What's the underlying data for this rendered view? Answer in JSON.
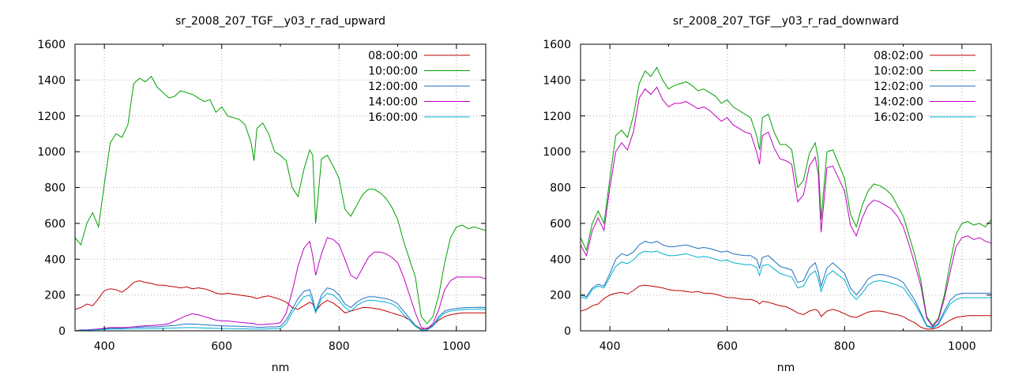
{
  "chart_data": [
    {
      "type": "line",
      "title": "sr_2008_207_TGF__y03_r_rad_upward",
      "xlabel": "nm",
      "ylabel": "",
      "xlim": [
        350,
        1050
      ],
      "ylim": [
        0,
        1600
      ],
      "xticks": [
        400,
        600,
        800,
        1000
      ],
      "yticks": [
        0,
        200,
        400,
        600,
        800,
        1000,
        1200,
        1400,
        1600
      ],
      "grid": true,
      "legend_position": "top-right",
      "x": [
        350,
        360,
        370,
        380,
        390,
        400,
        410,
        420,
        430,
        440,
        450,
        460,
        470,
        480,
        490,
        500,
        510,
        520,
        530,
        540,
        550,
        560,
        570,
        580,
        590,
        600,
        610,
        620,
        630,
        640,
        650,
        655,
        660,
        670,
        680,
        690,
        700,
        710,
        720,
        730,
        740,
        750,
        755,
        760,
        770,
        780,
        790,
        800,
        810,
        820,
        830,
        840,
        850,
        860,
        870,
        880,
        890,
        900,
        910,
        920,
        930,
        940,
        950,
        960,
        970,
        980,
        990,
        1000,
        1010,
        1020,
        1030,
        1040,
        1050
      ],
      "series": [
        {
          "name": "08:00:00",
          "color": "#c00000",
          "values": [
            120,
            130,
            150,
            140,
            180,
            225,
            235,
            230,
            215,
            240,
            270,
            280,
            270,
            265,
            255,
            255,
            250,
            245,
            240,
            245,
            235,
            240,
            235,
            225,
            210,
            205,
            210,
            205,
            200,
            195,
            190,
            185,
            180,
            190,
            195,
            185,
            175,
            160,
            130,
            120,
            140,
            160,
            150,
            110,
            150,
            170,
            155,
            130,
            100,
            110,
            120,
            130,
            130,
            125,
            120,
            110,
            100,
            90,
            80,
            60,
            30,
            10,
            15,
            30,
            60,
            80,
            90,
            95,
            100,
            100,
            100,
            100,
            100
          ]
        },
        {
          "name": "10:00:00",
          "color": "#00a000",
          "values": [
            520,
            480,
            600,
            660,
            580,
            820,
            1050,
            1100,
            1080,
            1150,
            1380,
            1410,
            1390,
            1420,
            1360,
            1330,
            1300,
            1310,
            1340,
            1330,
            1320,
            1300,
            1280,
            1290,
            1220,
            1250,
            1200,
            1190,
            1180,
            1150,
            1050,
            950,
            1130,
            1160,
            1100,
            1000,
            980,
            950,
            800,
            750,
            900,
            1010,
            980,
            600,
            960,
            980,
            920,
            850,
            680,
            640,
            700,
            760,
            790,
            790,
            770,
            740,
            690,
            620,
            500,
            400,
            300,
            80,
            40,
            80,
            200,
            380,
            520,
            580,
            590,
            570,
            580,
            570,
            560
          ]
        },
        {
          "name": "12:00:00",
          "color": "#1f6fc0",
          "values": [
            0,
            5,
            5,
            8,
            10,
            12,
            15,
            15,
            15,
            18,
            20,
            20,
            22,
            22,
            22,
            25,
            28,
            30,
            35,
            38,
            38,
            36,
            34,
            32,
            30,
            28,
            27,
            26,
            25,
            24,
            22,
            22,
            20,
            20,
            22,
            22,
            25,
            60,
            120,
            180,
            220,
            230,
            180,
            110,
            200,
            240,
            230,
            200,
            150,
            130,
            160,
            180,
            190,
            190,
            185,
            180,
            170,
            150,
            110,
            70,
            30,
            5,
            5,
            30,
            80,
            110,
            120,
            125,
            128,
            130,
            130,
            132,
            130
          ]
        },
        {
          "name": "14:00:00",
          "color": "#c000c0",
          "values": [
            0,
            5,
            5,
            8,
            10,
            15,
            18,
            18,
            18,
            20,
            22,
            25,
            28,
            30,
            32,
            35,
            40,
            55,
            70,
            85,
            95,
            90,
            80,
            70,
            60,
            55,
            55,
            52,
            48,
            45,
            42,
            40,
            35,
            35,
            38,
            40,
            45,
            100,
            220,
            360,
            460,
            500,
            420,
            310,
            430,
            520,
            510,
            480,
            400,
            310,
            290,
            350,
            410,
            440,
            440,
            430,
            410,
            380,
            300,
            200,
            100,
            20,
            10,
            40,
            120,
            230,
            280,
            300,
            300,
            300,
            300,
            300,
            290
          ]
        },
        {
          "name": "16:00:00",
          "color": "#00b0d0",
          "values": [
            0,
            3,
            3,
            5,
            6,
            8,
            10,
            10,
            10,
            11,
            12,
            12,
            13,
            13,
            13,
            14,
            15,
            16,
            17,
            18,
            18,
            17,
            16,
            15,
            14,
            13,
            13,
            12,
            12,
            11,
            10,
            10,
            10,
            10,
            11,
            12,
            14,
            40,
            100,
            150,
            190,
            200,
            160,
            100,
            180,
            210,
            200,
            170,
            130,
            110,
            140,
            160,
            170,
            170,
            165,
            160,
            150,
            130,
            90,
            60,
            25,
            5,
            5,
            25,
            70,
            100,
            110,
            115,
            118,
            120,
            120,
            122,
            120
          ]
        }
      ]
    },
    {
      "type": "line",
      "title": "sr_2008_207_TGF__y03_r_rad_downward",
      "xlabel": "nm",
      "ylabel": "",
      "xlim": [
        350,
        1050
      ],
      "ylim": [
        0,
        1600
      ],
      "xticks": [
        400,
        600,
        800,
        1000
      ],
      "yticks": [
        0,
        200,
        400,
        600,
        800,
        1000,
        1200,
        1400,
        1600
      ],
      "grid": true,
      "legend_position": "top-right",
      "x": [
        350,
        360,
        370,
        380,
        390,
        400,
        410,
        420,
        430,
        440,
        450,
        460,
        470,
        480,
        490,
        500,
        510,
        520,
        530,
        540,
        550,
        560,
        570,
        580,
        590,
        600,
        610,
        620,
        630,
        640,
        650,
        655,
        660,
        670,
        680,
        690,
        700,
        710,
        720,
        730,
        740,
        750,
        755,
        760,
        770,
        780,
        790,
        800,
        810,
        820,
        830,
        840,
        850,
        860,
        870,
        880,
        890,
        900,
        910,
        920,
        930,
        940,
        950,
        960,
        970,
        980,
        990,
        1000,
        1010,
        1020,
        1030,
        1040,
        1050
      ],
      "series": [
        {
          "name": "08:02:00",
          "color": "#c00000",
          "values": [
            110,
            120,
            140,
            150,
            180,
            200,
            210,
            215,
            205,
            225,
            250,
            255,
            250,
            245,
            240,
            230,
            225,
            225,
            220,
            215,
            220,
            210,
            210,
            205,
            195,
            185,
            185,
            180,
            175,
            175,
            165,
            150,
            165,
            160,
            150,
            140,
            135,
            120,
            100,
            90,
            110,
            120,
            110,
            80,
            110,
            120,
            110,
            95,
            80,
            75,
            90,
            105,
            110,
            110,
            105,
            95,
            90,
            80,
            60,
            45,
            20,
            10,
            10,
            20,
            40,
            60,
            75,
            80,
            85,
            85,
            85,
            85,
            85
          ]
        },
        {
          "name": "10:02:00",
          "color": "#00a000",
          "values": [
            520,
            450,
            600,
            670,
            600,
            850,
            1090,
            1120,
            1080,
            1200,
            1380,
            1450,
            1420,
            1470,
            1400,
            1350,
            1370,
            1380,
            1390,
            1370,
            1340,
            1350,
            1330,
            1310,
            1270,
            1290,
            1250,
            1230,
            1210,
            1190,
            1090,
            1010,
            1190,
            1210,
            1110,
            1040,
            1040,
            1010,
            800,
            840,
            990,
            1050,
            960,
            620,
            1000,
            1010,
            930,
            850,
            650,
            580,
            700,
            780,
            820,
            810,
            790,
            760,
            700,
            640,
            530,
            420,
            280,
            80,
            30,
            70,
            200,
            380,
            540,
            600,
            610,
            590,
            600,
            580,
            620
          ]
        },
        {
          "name": "12:02:00",
          "color": "#1f6fc0",
          "values": [
            200,
            190,
            240,
            260,
            250,
            320,
            400,
            430,
            420,
            440,
            480,
            500,
            490,
            500,
            480,
            470,
            470,
            475,
            480,
            470,
            460,
            465,
            460,
            450,
            440,
            445,
            430,
            425,
            420,
            420,
            400,
            350,
            410,
            420,
            390,
            360,
            350,
            340,
            270,
            280,
            350,
            380,
            330,
            250,
            350,
            380,
            350,
            320,
            240,
            200,
            240,
            290,
            310,
            315,
            310,
            300,
            290,
            270,
            220,
            170,
            100,
            30,
            20,
            40,
            110,
            170,
            200,
            210,
            210,
            210,
            210,
            210,
            210
          ]
        },
        {
          "name": "14:02:00",
          "color": "#c000c0",
          "values": [
            480,
            420,
            560,
            630,
            560,
            800,
            1000,
            1050,
            1010,
            1110,
            1300,
            1350,
            1320,
            1360,
            1290,
            1250,
            1270,
            1270,
            1280,
            1260,
            1240,
            1250,
            1230,
            1200,
            1170,
            1190,
            1150,
            1130,
            1110,
            1100,
            1000,
            930,
            1090,
            1110,
            1020,
            960,
            950,
            930,
            720,
            760,
            920,
            970,
            880,
            550,
            910,
            920,
            850,
            780,
            590,
            530,
            630,
            700,
            730,
            720,
            700,
            680,
            640,
            580,
            480,
            370,
            250,
            70,
            25,
            60,
            180,
            330,
            470,
            520,
            530,
            510,
            520,
            500,
            490
          ]
        },
        {
          "name": "16:02:00",
          "color": "#00b0d0",
          "values": [
            190,
            180,
            230,
            250,
            240,
            300,
            360,
            385,
            375,
            395,
            430,
            445,
            440,
            445,
            430,
            420,
            420,
            425,
            430,
            420,
            410,
            415,
            410,
            400,
            390,
            395,
            380,
            375,
            370,
            370,
            355,
            310,
            365,
            370,
            345,
            320,
            310,
            300,
            240,
            250,
            310,
            335,
            290,
            220,
            310,
            335,
            310,
            285,
            210,
            175,
            210,
            255,
            275,
            280,
            275,
            265,
            255,
            240,
            195,
            150,
            90,
            25,
            15,
            35,
            95,
            150,
            175,
            185,
            185,
            185,
            185,
            185,
            185
          ]
        }
      ]
    }
  ]
}
